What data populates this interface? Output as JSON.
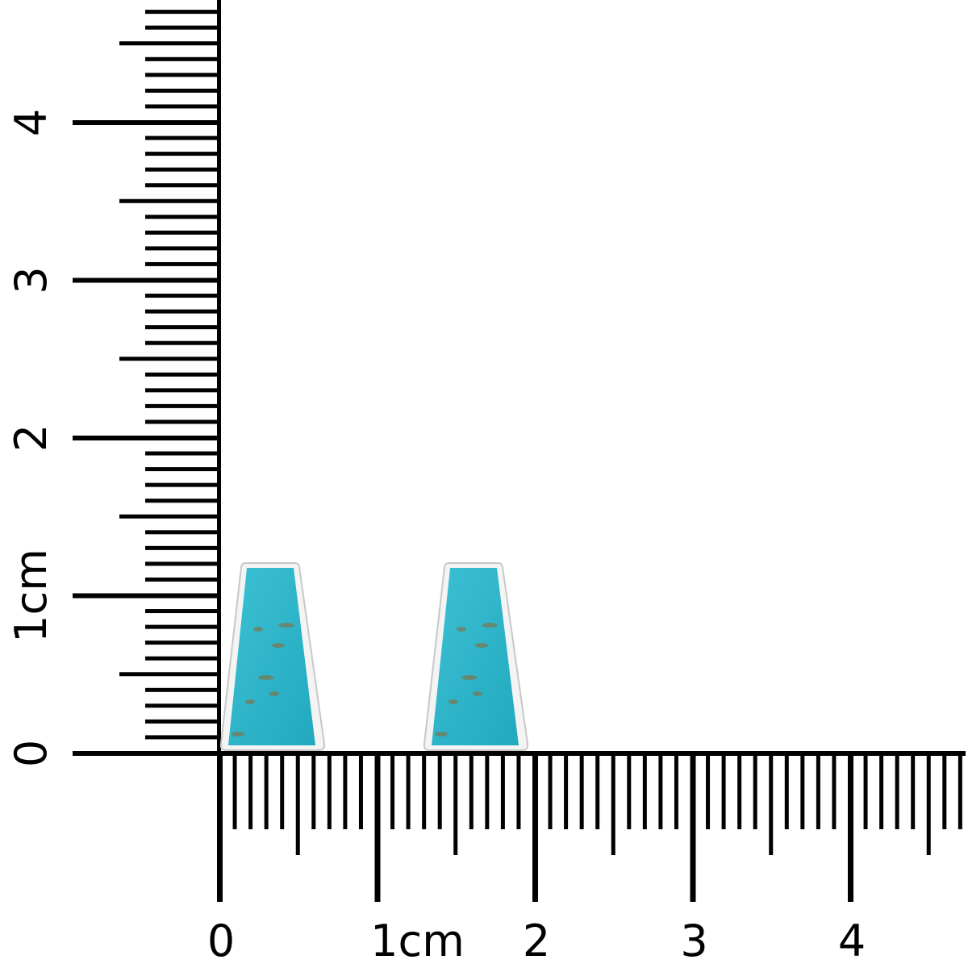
{
  "rulers": {
    "unit": "cm",
    "vertical_labels": [
      "0",
      "1cm",
      "2",
      "3",
      "4"
    ],
    "horizontal_labels": [
      "0",
      "1cm",
      "2",
      "3",
      "4"
    ],
    "tick_color": "#000000"
  },
  "product": {
    "items": [
      {
        "name": "turquoise-trapezoid-earring-left",
        "stone_color": "#2fb3c8",
        "metal_color": "#c8c8c8"
      },
      {
        "name": "turquoise-trapezoid-earring-right",
        "stone_color": "#2fb3c8",
        "metal_color": "#c8c8c8"
      }
    ]
  }
}
